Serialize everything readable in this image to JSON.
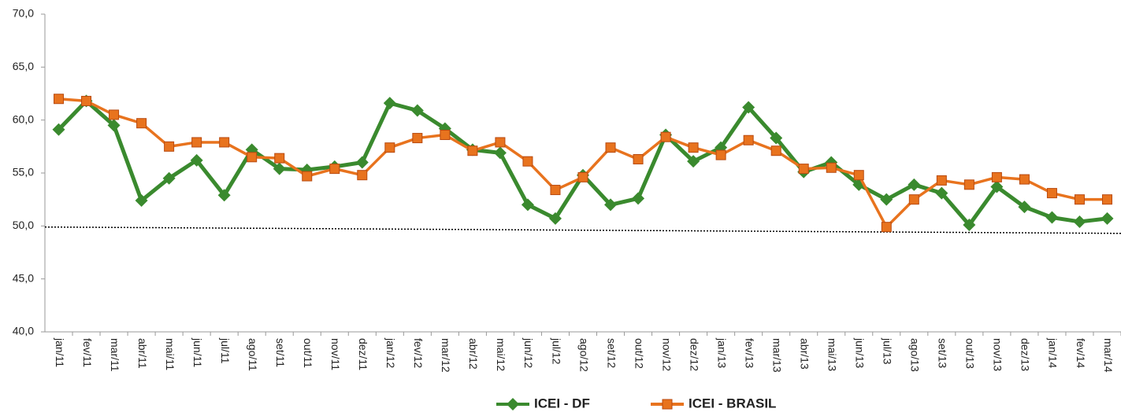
{
  "chart_data": {
    "type": "line",
    "categories": [
      "jan/11",
      "fev/11",
      "mar/11",
      "abr/11",
      "mai/11",
      "jun/11",
      "jul/11",
      "ago/11",
      "set/11",
      "out/11",
      "nov/11",
      "dez/11",
      "jan/12",
      "fev/12",
      "mar/12",
      "abr/12",
      "mai/12",
      "jun/12",
      "jul/12",
      "ago/12",
      "set/12",
      "out/12",
      "nov/12",
      "dez/12",
      "jan/13",
      "fev/13",
      "mar/13",
      "abr/13",
      "mai/13",
      "jun/13",
      "jul/13",
      "ago/13",
      "set/13",
      "out/13",
      "nov/13",
      "dez/13",
      "jan/14",
      "fev/14",
      "mar/14"
    ],
    "series": [
      {
        "name": "ICEI - DF",
        "color": "#3a8a2e",
        "marker": "diamond",
        "values": [
          59.1,
          61.8,
          59.5,
          52.4,
          54.5,
          56.2,
          52.9,
          57.2,
          55.4,
          55.3,
          55.6,
          56.0,
          61.6,
          60.9,
          59.2,
          57.2,
          56.9,
          52.0,
          50.7,
          54.8,
          52.0,
          52.6,
          58.6,
          56.1,
          57.4,
          61.2,
          58.3,
          55.1,
          56.0,
          53.9,
          52.5,
          53.9,
          53.1,
          50.1,
          53.7,
          51.8,
          50.8,
          50.4,
          50.7
        ]
      },
      {
        "name": "ICEI - BRASIL",
        "color": "#e8731e",
        "marker": "square",
        "values": [
          62.0,
          61.8,
          60.5,
          59.7,
          57.5,
          57.9,
          57.9,
          56.5,
          56.4,
          54.7,
          55.4,
          54.8,
          57.4,
          58.3,
          58.6,
          57.1,
          57.9,
          56.1,
          53.4,
          54.6,
          57.4,
          56.3,
          58.4,
          57.4,
          56.7,
          58.1,
          57.1,
          55.4,
          55.5,
          54.8,
          49.9,
          52.5,
          54.3,
          53.9,
          54.6,
          54.4,
          53.1,
          52.5,
          52.5
        ]
      }
    ],
    "reference_line": [
      49.9,
      49.3
    ],
    "ylim": [
      40,
      70
    ],
    "yticks": [
      {
        "value": 40,
        "label": "40,0"
      },
      {
        "value": 45,
        "label": "45,0"
      },
      {
        "value": 50,
        "label": "50,0"
      },
      {
        "value": 55,
        "label": "55,0"
      },
      {
        "value": 60,
        "label": "60,0"
      },
      {
        "value": 65,
        "label": "65,0"
      },
      {
        "value": 70,
        "label": "70,0"
      }
    ],
    "legend": "bottom"
  }
}
